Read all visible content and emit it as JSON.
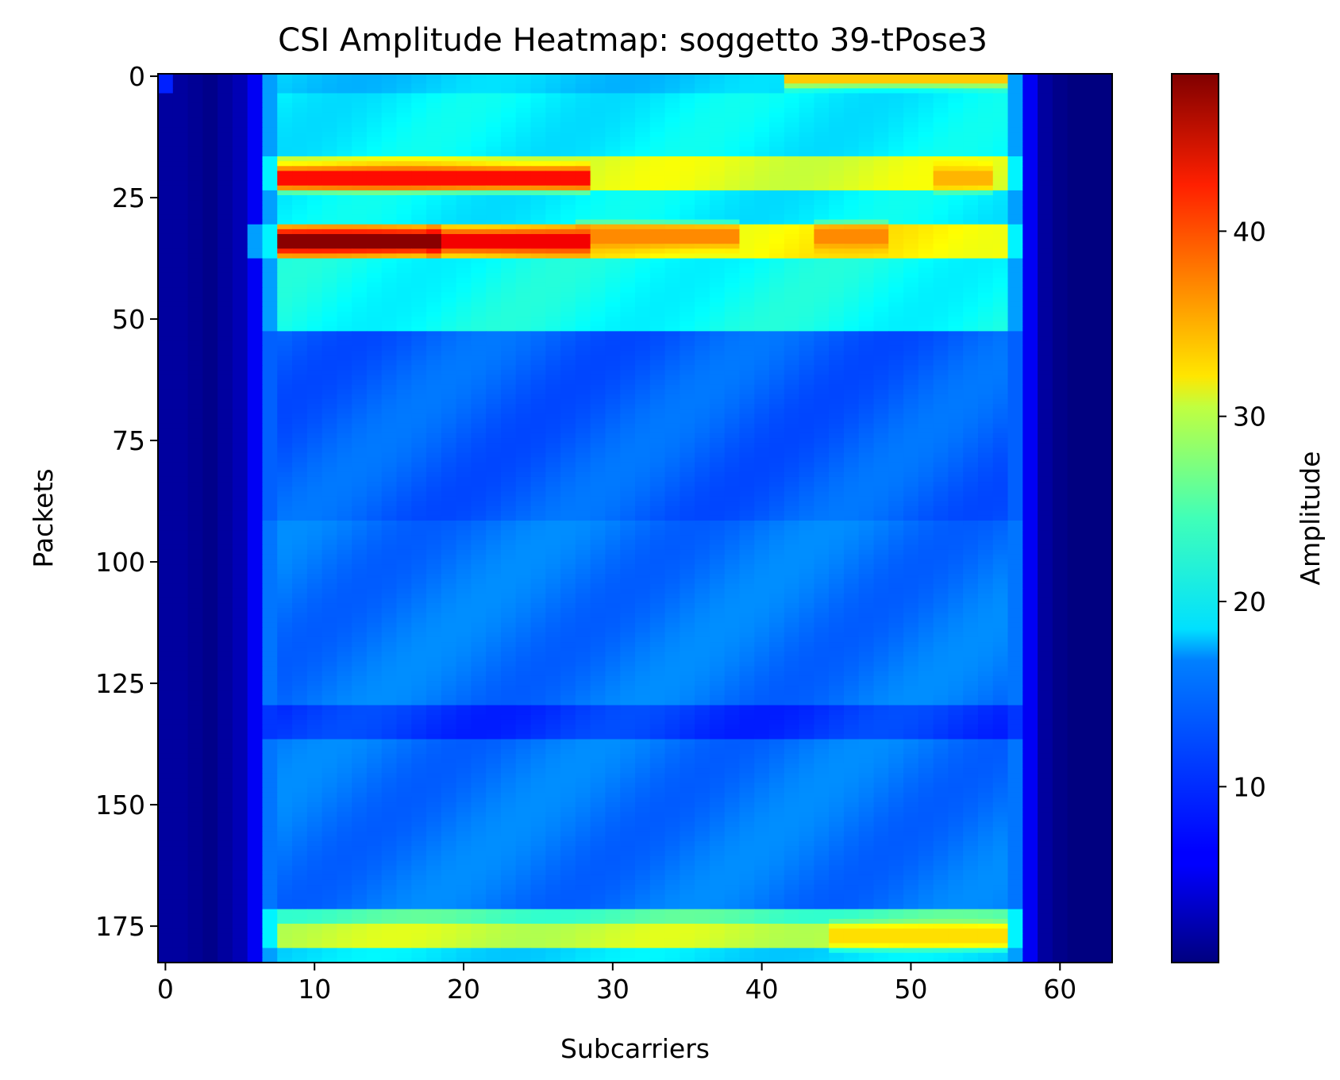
{
  "chart_data": {
    "type": "heatmap",
    "title": "CSI Amplitude Heatmap: soggetto 39-tPose3",
    "xlabel": "Subcarriers",
    "ylabel": "Packets",
    "colorbar_label": "Amplitude",
    "colormap": "jet",
    "x_range": [
      0,
      63
    ],
    "y_range": [
      0,
      183
    ],
    "y_inverted": true,
    "value_range": [
      0.5,
      48.5
    ],
    "x_ticks": [
      0,
      10,
      20,
      30,
      40,
      50,
      60
    ],
    "x_tick_labels": [
      "0",
      "10",
      "20",
      "30",
      "40",
      "50",
      "60"
    ],
    "y_ticks": [
      0,
      25,
      50,
      75,
      100,
      125,
      150,
      175
    ],
    "y_tick_labels": [
      "0",
      "25",
      "50",
      "75",
      "100",
      "125",
      "150",
      "175"
    ],
    "colorbar_ticks": [
      10,
      20,
      30,
      40
    ],
    "colorbar_tick_labels": [
      "10",
      "20",
      "30",
      "40"
    ],
    "subcarrier_baseline": [
      {
        "subcarrier": 0,
        "amplitude": 2
      },
      {
        "subcarrier": 1,
        "amplitude": 2
      },
      {
        "subcarrier": 2,
        "amplitude": 1.5
      },
      {
        "subcarrier": 3,
        "amplitude": 1
      },
      {
        "subcarrier": 4,
        "amplitude": 2
      },
      {
        "subcarrier": 5,
        "amplitude": 3
      },
      {
        "subcarrier": 6,
        "amplitude": 6
      },
      {
        "subcarrier": 7,
        "amplitude": 11
      },
      {
        "subcarrier": 57,
        "amplitude": 11
      },
      {
        "subcarrier": 58,
        "amplitude": 6
      },
      {
        "subcarrier": 59,
        "amplitude": 2
      },
      {
        "subcarrier": 60,
        "amplitude": 1
      },
      {
        "subcarrier": 61,
        "amplitude": 0.5
      },
      {
        "subcarrier": 62,
        "amplitude": 0.5
      },
      {
        "subcarrier": 63,
        "amplitude": 0.5
      }
    ],
    "packet_bands": [
      {
        "packets": [
          0,
          4
        ],
        "amplitude": 16
      },
      {
        "packets": [
          4,
          17
        ],
        "amplitude": 18
      },
      {
        "packets": [
          17,
          24
        ],
        "amplitude": 29
      },
      {
        "packets": [
          24,
          31
        ],
        "amplitude": 18
      },
      {
        "packets": [
          31,
          38
        ],
        "amplitude": 31
      },
      {
        "packets": [
          38,
          53
        ],
        "amplitude": 19
      },
      {
        "packets": [
          53,
          65
        ],
        "amplitude": 11
      },
      {
        "packets": [
          65,
          92
        ],
        "amplitude": 11
      },
      {
        "packets": [
          92,
          130
        ],
        "amplitude": 12
      },
      {
        "packets": [
          130,
          137
        ],
        "amplitude": 9
      },
      {
        "packets": [
          137,
          172
        ],
        "amplitude": 12
      },
      {
        "packets": [
          172,
          175
        ],
        "amplitude": 22
      },
      {
        "packets": [
          175,
          180
        ],
        "amplitude": 28
      },
      {
        "packets": [
          180,
          183
        ],
        "amplitude": 17
      }
    ],
    "hotspots": [
      {
        "packet": 21,
        "subcarriers": [
          8,
          28
        ],
        "amplitude": 42
      },
      {
        "packet": 34,
        "subcarriers": [
          7,
          18
        ],
        "amplitude": 48
      },
      {
        "packet": 34,
        "subcarriers": [
          18,
          28
        ],
        "amplitude": 43
      },
      {
        "packet": 33,
        "subcarriers": [
          28,
          38
        ],
        "amplitude": 36
      },
      {
        "packet": 33,
        "subcarriers": [
          44,
          48
        ],
        "amplitude": 36
      },
      {
        "packet": 0,
        "subcarriers": [
          42,
          56
        ],
        "amplitude": 33
      },
      {
        "packet": 21,
        "subcarriers": [
          52,
          55
        ],
        "amplitude": 34
      },
      {
        "packet": 177,
        "subcarriers": [
          45,
          56
        ],
        "amplitude": 32
      }
    ]
  }
}
